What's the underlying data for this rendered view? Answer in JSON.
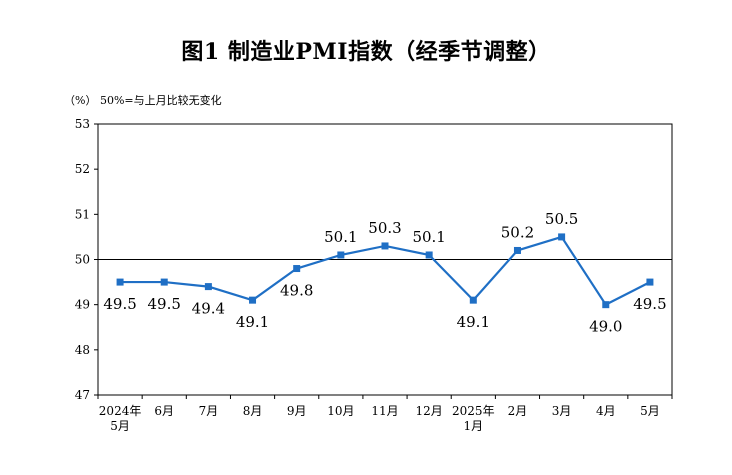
{
  "title": "图1  制造业PMI指数（经季节调整）",
  "unit_note": "（%）  50%=与上月比较无变化",
  "chart_data": {
    "type": "line",
    "title": "图1  制造业PMI指数（经季节调整）",
    "categories": [
      [
        "2024年",
        "5月"
      ],
      [
        "6月"
      ],
      [
        "7月"
      ],
      [
        "8月"
      ],
      [
        "9月"
      ],
      [
        "10月"
      ],
      [
        "11月"
      ],
      [
        "12月"
      ],
      [
        "2025年",
        "1月"
      ],
      [
        "2月"
      ],
      [
        "3月"
      ],
      [
        "4月"
      ],
      [
        "5月"
      ]
    ],
    "values": [
      49.5,
      49.5,
      49.4,
      49.1,
      49.8,
      50.1,
      50.3,
      50.1,
      49.1,
      50.2,
      50.5,
      49.0,
      49.5
    ],
    "labels": [
      "49.5",
      "49.5",
      "49.4",
      "49.1",
      "49.8",
      "50.1",
      "50.3",
      "50.1",
      "49.1",
      "50.2",
      "50.5",
      "49.0",
      "49.5"
    ],
    "label_positions": [
      "below",
      "below",
      "below",
      "below",
      "below",
      "above",
      "above",
      "above",
      "below",
      "above",
      "above",
      "below",
      "below"
    ],
    "ylim": [
      47,
      53
    ],
    "yticks": [
      "47",
      "48",
      "49",
      "50",
      "51",
      "52",
      "53"
    ],
    "reference_line": 50,
    "grid": false,
    "series_color": "#1f6fc5",
    "reference_color": "#000000"
  }
}
